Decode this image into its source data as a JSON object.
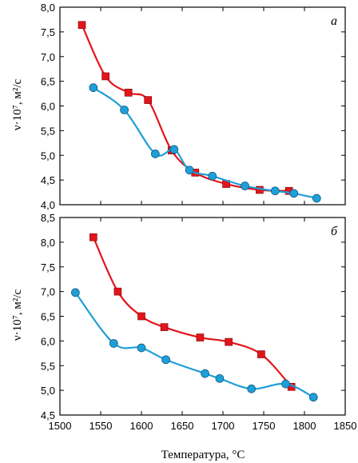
{
  "chart_data": [
    {
      "type": "line",
      "panel_label": "а",
      "ylabel": "ν·10⁷, м²/с",
      "xlabel": "Температура, °С",
      "xlim": [
        1500,
        1850
      ],
      "ylim": [
        4.0,
        8.0
      ],
      "x_ticks": [
        1500,
        1550,
        1600,
        1650,
        1700,
        1750,
        1800,
        1850
      ],
      "x_tick_labels": [
        "1500",
        "1550",
        "1600",
        "1650",
        "1700",
        "1750",
        "1800",
        "1850"
      ],
      "y_ticks": [
        4.0,
        4.5,
        5.0,
        5.5,
        6.0,
        6.5,
        7.0,
        7.5,
        8.0
      ],
      "y_tick_labels": [
        "4,0",
        "4,5",
        "5,0",
        "5,5",
        "6,0",
        "6,5",
        "7,0",
        "7,5",
        "8,0"
      ],
      "grid": false,
      "series": [
        {
          "marker": "square",
          "color": "#e3151b",
          "x": [
            1527,
            1556,
            1584,
            1608,
            1637,
            1666,
            1704,
            1745,
            1781
          ],
          "y": [
            7.64,
            6.6,
            6.27,
            6.12,
            5.1,
            4.65,
            4.42,
            4.3,
            4.28
          ]
        },
        {
          "marker": "circle",
          "color": "#1e9fd8",
          "x": [
            1541,
            1579,
            1617,
            1640,
            1659,
            1687,
            1727,
            1764,
            1787,
            1815
          ],
          "y": [
            6.37,
            5.92,
            5.03,
            5.12,
            4.7,
            4.58,
            4.38,
            4.28,
            4.23,
            4.13
          ]
        }
      ]
    },
    {
      "type": "line",
      "panel_label": "б",
      "ylabel": "ν·10⁷, м²/с",
      "xlabel": "Температура, °С",
      "xlim": [
        1500,
        1850
      ],
      "ylim": [
        4.5,
        8.5
      ],
      "x_ticks": [
        1500,
        1550,
        1600,
        1650,
        1700,
        1750,
        1800,
        1850
      ],
      "x_tick_labels": [
        "1500",
        "1550",
        "1600",
        "1650",
        "1700",
        "1750",
        "1800",
        "1850"
      ],
      "y_ticks": [
        4.5,
        5.0,
        5.5,
        6.0,
        6.5,
        7.0,
        7.5,
        8.0,
        8.5
      ],
      "y_tick_labels": [
        "4,5",
        "5,0",
        "5,5",
        "6,0",
        "6,5",
        "7,0",
        "7,5",
        "8,0",
        "8,5"
      ],
      "grid": false,
      "series": [
        {
          "marker": "square",
          "color": "#e3151b",
          "x": [
            1541,
            1571,
            1600,
            1628,
            1672,
            1707,
            1747,
            1784
          ],
          "y": [
            8.1,
            7.0,
            6.5,
            6.28,
            6.07,
            5.98,
            5.73,
            5.07
          ]
        },
        {
          "marker": "circle",
          "color": "#1e9fd8",
          "x": [
            1519,
            1566,
            1600,
            1630,
            1678,
            1696,
            1735,
            1777,
            1811
          ],
          "y": [
            6.98,
            5.95,
            5.86,
            5.62,
            5.34,
            5.24,
            5.03,
            5.13,
            4.86
          ]
        }
      ]
    }
  ]
}
